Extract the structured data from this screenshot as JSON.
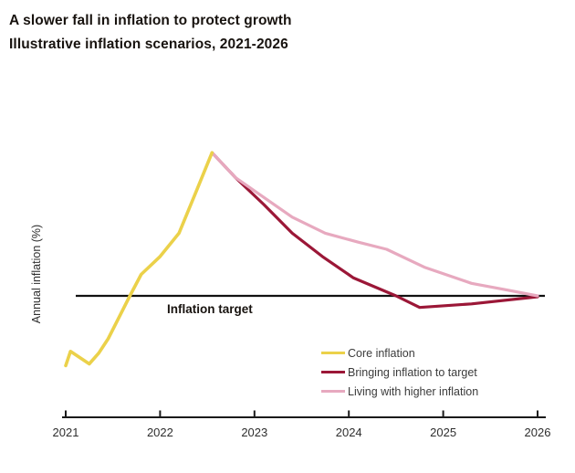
{
  "header": {
    "title": "A slower fall in inflation to protect growth",
    "subtitle": "Illustrative inflation scenarios, 2021-2026"
  },
  "colors": {
    "background": "#ffffff",
    "title_text": "#18130f",
    "axis_line": "#1a1a1a",
    "tick_text": "#2e2e2e",
    "target_line": "#111111",
    "core_yellow": "#ebd14a",
    "target_crimson": "#9b1737",
    "higher_pink": "#e7a9bf"
  },
  "chart_data": {
    "type": "line",
    "title": "A slower fall in inflation to protect growth",
    "subtitle": "Illustrative inflation scenarios, 2021-2026",
    "xlabel": "",
    "ylabel": "Annual inflation (%)",
    "x_ticks": [
      2021,
      2022,
      2023,
      2024,
      2025,
      2026
    ],
    "xlim": [
      2021,
      2026.1
    ],
    "ylim": [
      -2.5,
      11
    ],
    "grid": false,
    "legend_position": "lower-right-inside",
    "y_axis": {
      "label": "Annual inflation (%)",
      "tick_labels_visible": false,
      "assumed_target_value": 2
    },
    "reference_line": {
      "label": "Inflation target",
      "value": 2.0,
      "x_start": 2021.1,
      "x_end": 2026.08
    },
    "series": [
      {
        "name": "Core inflation",
        "color": "#ebd14a",
        "points": [
          [
            2021.0,
            -1.9
          ],
          [
            2021.05,
            -1.1
          ],
          [
            2021.25,
            -1.8
          ],
          [
            2021.35,
            -1.2
          ],
          [
            2021.45,
            -0.4
          ],
          [
            2021.68,
            2.0
          ],
          [
            2021.8,
            3.2
          ],
          [
            2022.0,
            4.2
          ],
          [
            2022.2,
            5.5
          ],
          [
            2022.38,
            7.8
          ],
          [
            2022.55,
            10.0
          ]
        ]
      },
      {
        "name": "Bringing inflation to target",
        "color": "#9b1737",
        "points": [
          [
            2022.55,
            10.0
          ],
          [
            2022.8,
            8.6
          ],
          [
            2023.1,
            7.1
          ],
          [
            2023.4,
            5.5
          ],
          [
            2023.72,
            4.2
          ],
          [
            2024.05,
            3.0
          ],
          [
            2024.5,
            2.0
          ],
          [
            2024.75,
            1.35
          ],
          [
            2025.3,
            1.55
          ],
          [
            2026.0,
            1.95
          ]
        ]
      },
      {
        "name": "Living with higher inflation",
        "color": "#e7a9bf",
        "points": [
          [
            2022.55,
            10.0
          ],
          [
            2022.8,
            8.6
          ],
          [
            2023.1,
            7.5
          ],
          [
            2023.4,
            6.4
          ],
          [
            2023.75,
            5.5
          ],
          [
            2024.1,
            5.0
          ],
          [
            2024.4,
            4.6
          ],
          [
            2024.8,
            3.6
          ],
          [
            2025.3,
            2.7
          ],
          [
            2025.65,
            2.35
          ],
          [
            2026.0,
            2.0
          ]
        ]
      }
    ]
  }
}
